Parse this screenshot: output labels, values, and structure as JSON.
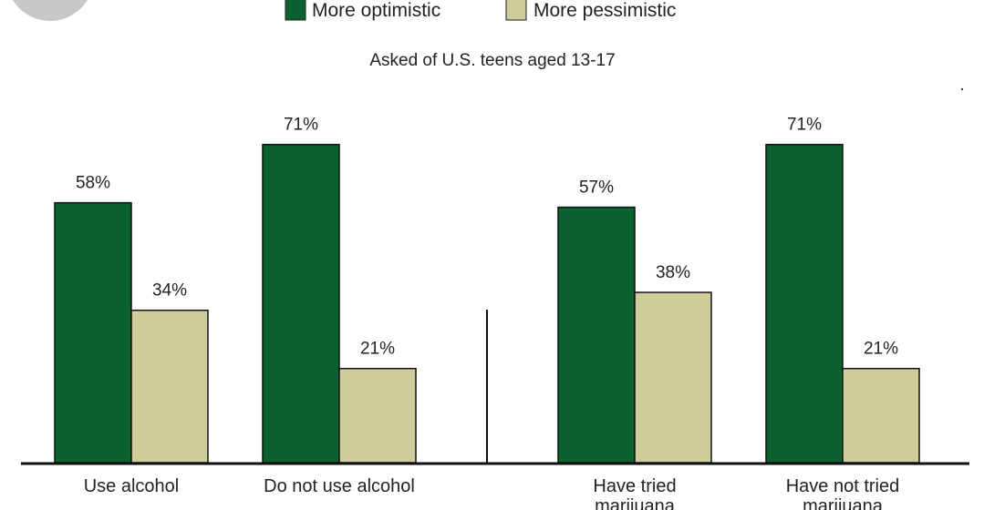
{
  "chart_data": {
    "type": "bar",
    "subtitle": "Asked of U.S. teens aged 13-17",
    "categories": [
      "Use alcohol",
      "Do not use alcohol",
      "Have tried marijuana",
      "Have not tried marijuana"
    ],
    "series": [
      {
        "name": "More optimistic",
        "color": "#0b6130",
        "values": [
          58,
          71,
          57,
          71
        ],
        "labels": [
          "58%",
          "71%",
          "57%",
          "71%"
        ]
      },
      {
        "name": "More pessimistic",
        "color": "#cfcd9c",
        "values": [
          34,
          21,
          38,
          21
        ],
        "labels": [
          "34%",
          "21%",
          "38%",
          "21%"
        ]
      }
    ],
    "ylim": [
      0,
      100
    ],
    "grid": false,
    "legend": "top",
    "unit": "%"
  }
}
